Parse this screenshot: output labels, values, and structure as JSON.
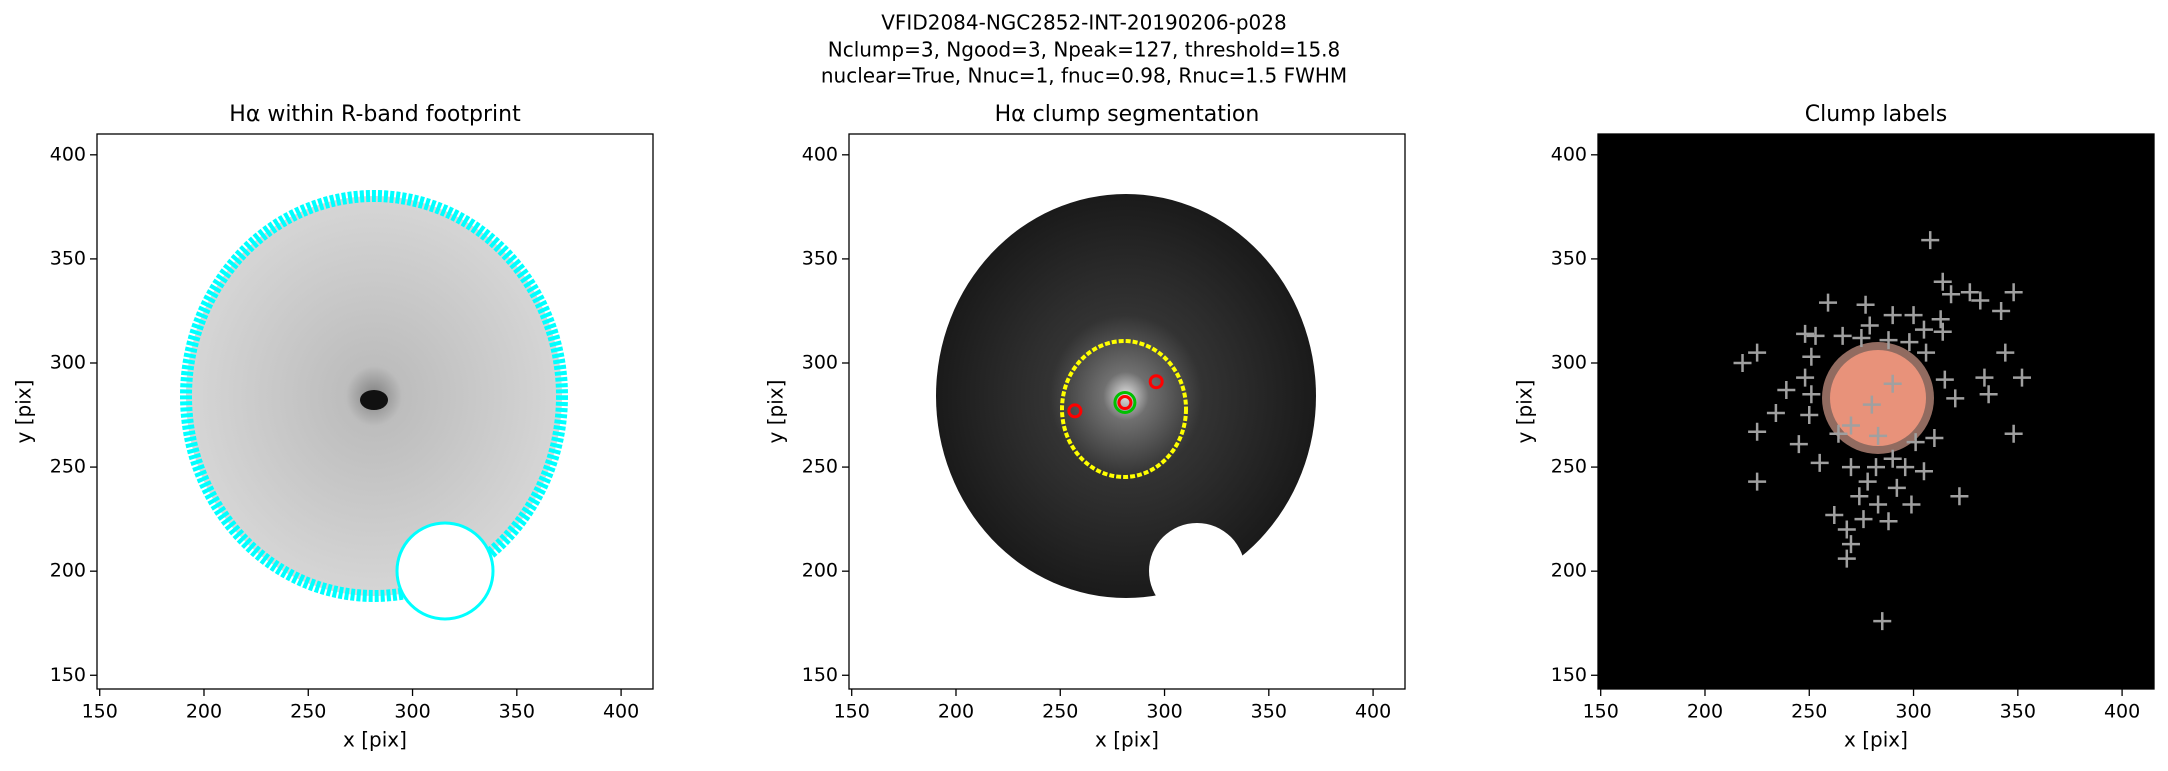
{
  "figure_title": [
    "VFID2084-NGC2852-INT-20190206-p028",
    "Nclump=3, Ngood=3, Npeak=127, threshold=15.8",
    "nuclear=True, Nnuc=1, fnuc=0.98, Rnuc=1.5 FWHM"
  ],
  "chart_data": [
    {
      "type": "image",
      "title": "Hα within R-band footprint",
      "x_label": "x [pix]",
      "y_label": "y [pix]",
      "xlim": [
        148.7,
        415.3
      ],
      "ylim": [
        143.4,
        410
      ],
      "xticks": [
        150,
        200,
        250,
        300,
        350,
        400
      ],
      "yticks": [
        150,
        200,
        250,
        300,
        350,
        400
      ]
    },
    {
      "type": "scatter",
      "title": "Hα clump segmentation",
      "x_label": "x [pix]",
      "y_label": "y [pix]",
      "xlim": [
        148.7,
        415.3
      ],
      "ylim": [
        143.4,
        410
      ],
      "xticks": [
        150,
        200,
        250,
        300,
        350,
        400
      ],
      "yticks": [
        150,
        200,
        250,
        300,
        350,
        400
      ],
      "series": [
        {
          "color": "#ff0000",
          "marker": "o",
          "x": [
            257,
            296,
            281
          ],
          "y": [
            277,
            291,
            281
          ]
        },
        {
          "color": "#00c000",
          "marker": "ring",
          "x": [
            281
          ],
          "y": [
            281
          ]
        }
      ]
    },
    {
      "type": "scatter",
      "title": "Clump labels",
      "x_label": "x [pix]",
      "y_label": "y [pix]",
      "xlim": [
        148.7,
        415.3
      ],
      "ylim": [
        143.4,
        410
      ],
      "xticks": [
        150,
        200,
        250,
        300,
        350,
        400
      ],
      "yticks": [
        150,
        200,
        250,
        300,
        350,
        400
      ],
      "series": [
        {
          "color": "#a0a0a0",
          "marker": "+",
          "x": [
            308,
            259,
            277,
            314,
            327,
            348,
            318,
            332,
            300,
            290,
            313,
            279,
            305,
            248,
            253,
            266,
            275,
            314,
            342,
            288,
            298,
            306,
            225,
            218,
            344,
            352,
            334,
            251,
            248,
            315,
            320,
            336,
            239,
            251,
            250,
            234,
            225,
            245,
            310,
            348,
            264,
            301,
            290,
            255,
            270,
            282,
            296,
            305,
            278,
            292,
            225,
            322,
            299,
            283,
            274,
            262,
            288,
            276,
            268,
            270,
            268,
            285,
            280,
            270,
            290,
            283
          ],
          "y": [
            359,
            329,
            328,
            339,
            334,
            334,
            333,
            330,
            323,
            323,
            321,
            318,
            316,
            314,
            313,
            313,
            312,
            315,
            325,
            311,
            310,
            305,
            305,
            300,
            305,
            293,
            293,
            303,
            293,
            292,
            283,
            285,
            287,
            285,
            275,
            276,
            267,
            261,
            264,
            266,
            266,
            262,
            254,
            252,
            250,
            250,
            250,
            248,
            243,
            240,
            243,
            236,
            232,
            232,
            236,
            227,
            224,
            225,
            220,
            213,
            206,
            176,
            280,
            270,
            290,
            265
          ]
        }
      ]
    }
  ]
}
